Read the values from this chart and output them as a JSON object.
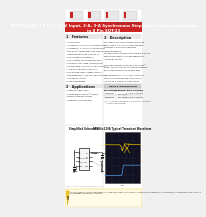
{
  "bg": "#f0f0f0",
  "white": "#ffffff",
  "header_red": "#cc2222",
  "text_dark": "#1a1a1a",
  "text_mid": "#444444",
  "text_light": "#888888",
  "gray_light": "#cccccc",
  "gray_mid": "#aaaaaa",
  "gray_bg": "#e8e8e8",
  "gray_header": "#d0d0d0",
  "page_shadow": "#bbbbbb",
  "warn_yellow": "#f5c518",
  "warn_bg": "#fffbe6",
  "waveform_bg": "#111122",
  "wave_yellow": "#e8c000",
  "wave_blue": "#5599dd",
  "wave_green": "#44cc44",
  "title1": "4.5-V To 17-V Input, 2-A, 3-A Synchronous Step-Down Voltage Regulator",
  "title2": "in 8 Pin SOT-23",
  "part": "TPS56x219A",
  "sec1": "1   Features",
  "sec2": "2   Applications",
  "sec3": "3   Description",
  "features": [
    "All Integrated",
    "TPS56x219A: 2-A Synchronous Step-Down",
    "TPS56x319A: 3-A Synchronous Step-Down",
    "DCS-CONT™ Mode Control with 400-kHz Switching Frequency",
    "Output Voltage Range: 0.76 V to 7 V",
    "800-kHz Switching Frequency",
    "Low Shutdown Current Less than 10 μA",
    "1% Established Voltage Accuracy (0.5%)",
    "Startup-based Acceleration Output Voltage",
    "Cycle by Cycle Overcurrent Limit",
    "Hiccup mode Under Voltage Protection",
    "Non-latched OVP, UVLO and TSD Protections",
    "Adjustable Soft Start",
    "Power-Good Output"
  ],
  "apps": [
    "Digital TV Power Supply",
    "Set-Top-Box Blu-ray Disc™ Players",
    "Networking Server Switches",
    "Digital-Point Solutions (DPS)"
  ],
  "desc_lines": [
    "The TPS56x219A and TPS56x319A are simple",
    "easy-to-use, 2-A, 3-A synchronous step-down",
    "converters in 8-pin SOT-23 package.",
    "",
    "The devices are optimized to operate with minimum",
    "external component counts and optimized for",
    "low standby current.",
    "",
    "These devices employ proprietary DCS-CONT™",
    "mode control providing a fast transient response",
    "and reliable output across variable loads.",
    "",
    "The impressive 2-A or 3-A output current in a",
    "small SOT-23 package, and specified from",
    "-40°C to 85°C of ambient temperatures."
  ],
  "tbl_title": "DEVICE INFORMATION",
  "tbl_cols": [
    "PART NUMBER",
    "PACKAGE",
    "BODY SIZE (NOM)"
  ],
  "tbl_rows": [
    [
      "TPS56x219A",
      "SOT-23 (8)",
      "2.90 mm × 2.80 mm"
    ],
    [
      "TPS56x319A",
      "SOT-23 (8)",
      "2.90 mm × 2.80 mm"
    ]
  ],
  "tbl_note": "(1) For all available packages, see the ordnance addendum at\n    the end of this data sheet.",
  "schem_title": "Simplified Schematic",
  "wave_title": "TPS56x219A Typical Transient Waveform",
  "warn_text": "IMPORTANT NOTICE: A lot of this data sheet specifications, application circuits and other notes herein are included strictly for information and illustrative purposes. TI does not provide design services or other assistance."
}
